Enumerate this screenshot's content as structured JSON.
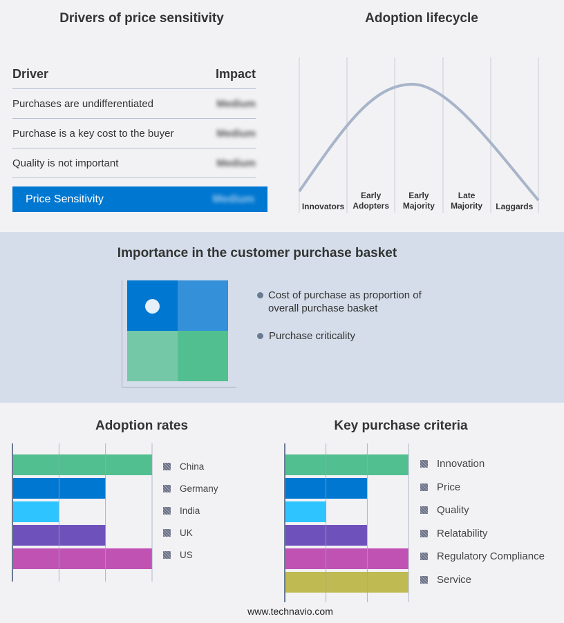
{
  "drivers": {
    "title": "Drivers of price sensitivity",
    "col_driver": "Driver",
    "col_impact": "Impact",
    "rows": [
      {
        "driver": "Purchases are undifferentiated",
        "impact": "Medium"
      },
      {
        "driver": "Purchase is a key cost to the buyer",
        "impact": "Medium"
      },
      {
        "driver": "Quality is not important",
        "impact": "Medium"
      }
    ],
    "summary": {
      "label": "Price Sensitivity",
      "impact": "Medium"
    }
  },
  "lifecycle": {
    "title": "Adoption lifecycle",
    "stages": [
      "Innovators",
      "Early Adopters",
      "Early Majority",
      "Late Majority",
      "Laggards"
    ]
  },
  "basket": {
    "title": "Importance in the customer purchase basket",
    "legend": [
      "Cost of purchase as proportion of overall purchase basket",
      "Purchase criticality"
    ]
  },
  "footer": "www.technavio.com",
  "chart_data": [
    {
      "type": "bar",
      "title": "Adoption rates",
      "categories": [
        "China",
        "Germany",
        "India",
        "UK",
        "US"
      ],
      "values": [
        3,
        2,
        1,
        2,
        3
      ],
      "colors": [
        "#52bf90",
        "#0077d0",
        "#2ec4ff",
        "#6f51bc",
        "#c052b4"
      ],
      "xlim": [
        0,
        3
      ],
      "grid": true,
      "legend": "right"
    },
    {
      "type": "bar",
      "title": "Key purchase criteria",
      "categories": [
        "Innovation",
        "Price",
        "Quality",
        "Relatability",
        "Regulatory Compliance",
        "Service"
      ],
      "values": [
        3,
        2,
        1,
        2,
        3,
        3
      ],
      "colors": [
        "#52bf90",
        "#0077d0",
        "#2ec4ff",
        "#6f51bc",
        "#c052b4",
        "#bfbb52"
      ],
      "xlim": [
        0,
        3
      ],
      "grid": true,
      "legend": "right"
    }
  ]
}
